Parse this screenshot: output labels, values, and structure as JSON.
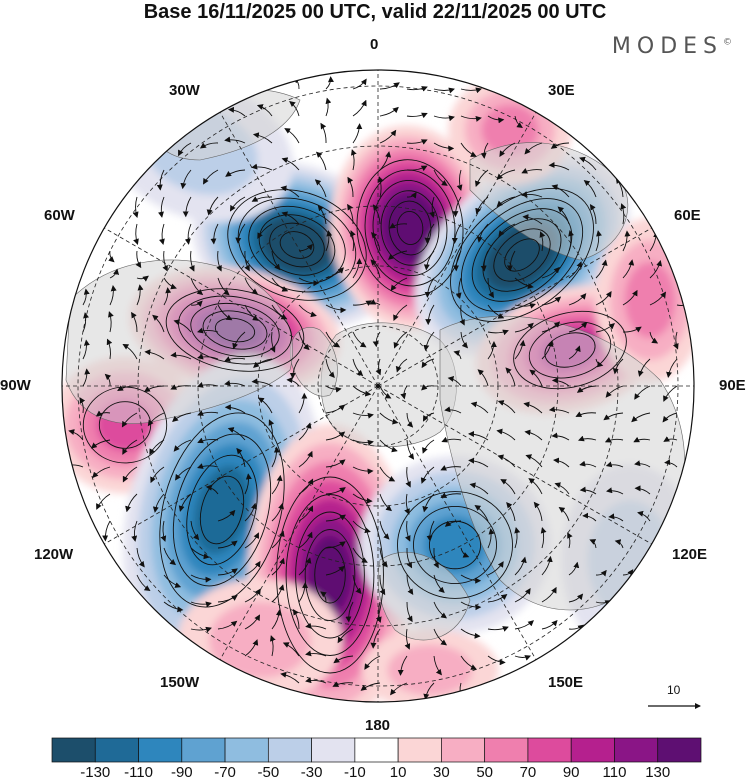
{
  "title": "Base 16/11/2025 00 UTC, valid 22/11/2025 00 UTC",
  "brand": "MODES",
  "brand_mark": "©",
  "longitude_labels": {
    "lon_0": "0",
    "lon_30e": "30E",
    "lon_60e": "60E",
    "lon_90e": "90E",
    "lon_120e": "120E",
    "lon_150e": "150E",
    "lon_180": "180",
    "lon_150w": "150W",
    "lon_120w": "120W",
    "lon_90w": "90W",
    "lon_60w": "60W",
    "lon_30w": "30W"
  },
  "vector_reference": {
    "label": "10",
    "magnitude": 10
  },
  "colorbar": {
    "ticks": [
      "-130",
      "-110",
      "-90",
      "-70",
      "-50",
      "-30",
      "-10",
      "10",
      "30",
      "50",
      "70",
      "90",
      "110",
      "130"
    ],
    "colors": [
      "#1c4e6b",
      "#1f6a97",
      "#2e86bd",
      "#5fa2d1",
      "#8fbde0",
      "#bccfe8",
      "#e3e3f0",
      "#ffffff",
      "#fbd6d6",
      "#f7aec3",
      "#ef7fae",
      "#dd4b9d",
      "#b5208e",
      "#8a1586",
      "#5e0f72"
    ]
  },
  "colors": {
    "land": "#d3d3d3",
    "ocean": "#f2f2f2"
  }
}
